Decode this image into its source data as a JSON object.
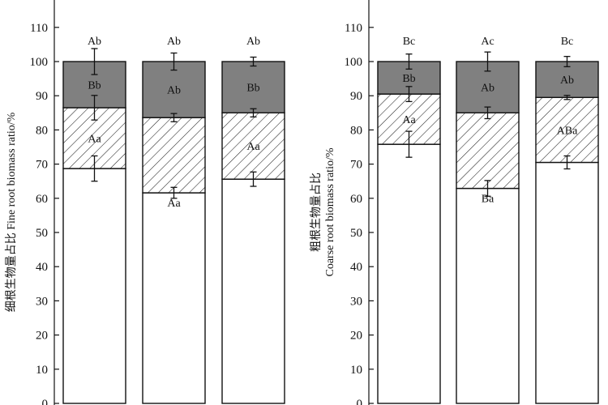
{
  "chart_data": [
    {
      "type": "bar",
      "stacked": true,
      "ylabel": "细根生物量占比 Fine root biomass ratio/%",
      "ylim": [
        0,
        120
      ],
      "yticks": [
        0,
        10,
        20,
        30,
        40,
        50,
        60,
        70,
        80,
        90,
        100,
        110
      ],
      "categories": [
        "",
        "",
        ""
      ],
      "grid": false,
      "series": [
        {
          "fill": "white",
          "values": [
            68.7,
            61.6,
            65.6
          ],
          "error": [
            3.7,
            1.6,
            2.1
          ]
        },
        {
          "fill": "hatch",
          "values": [
            17.8,
            22.0,
            19.4
          ],
          "error": [
            3.6,
            1.2,
            1.2
          ]
        },
        {
          "fill": "#808080",
          "values": [
            13.5,
            16.4,
            15.0
          ],
          "error": [
            3.8,
            2.5,
            1.3
          ]
        }
      ],
      "labels": [
        [
          "",
          "Aa",
          "Bb",
          "Ab"
        ],
        [
          "Aa",
          "",
          "Ab",
          "Ab"
        ],
        [
          "",
          "Aa",
          "Bb",
          "Ab"
        ]
      ]
    },
    {
      "type": "bar",
      "stacked": true,
      "ylabel": "粗根生物量占比 Coarse root biomass ratio/%",
      "ylim": [
        0,
        120
      ],
      "yticks": [
        0,
        10,
        20,
        30,
        40,
        50,
        60,
        70,
        80,
        90,
        100,
        110
      ],
      "categories": [
        "",
        "",
        ""
      ],
      "grid": false,
      "series": [
        {
          "fill": "white",
          "values": [
            75.8,
            62.9,
            70.5
          ],
          "error": [
            3.8,
            2.3,
            1.9
          ]
        },
        {
          "fill": "hatch",
          "values": [
            14.7,
            22.1,
            19.0
          ],
          "error": [
            2.2,
            1.7,
            0.6
          ]
        },
        {
          "fill": "#808080",
          "values": [
            9.5,
            15.0,
            10.5
          ],
          "error": [
            2.2,
            2.8,
            1.5
          ]
        }
      ],
      "labels": [
        [
          "",
          "Aa",
          "Bb",
          "Bc"
        ],
        [
          "Ba",
          "",
          "Ab",
          "Ac"
        ],
        [
          "",
          "ABa",
          "Ab",
          "Bc"
        ]
      ]
    }
  ]
}
